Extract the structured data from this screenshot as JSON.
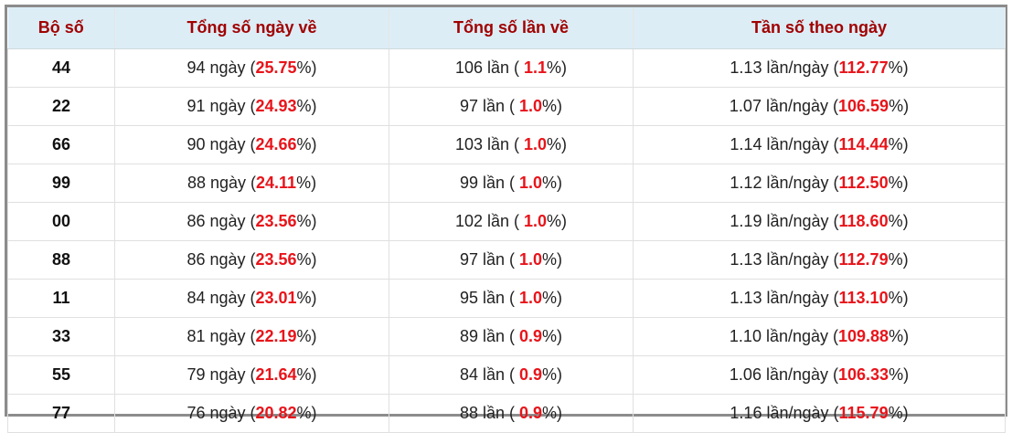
{
  "table": {
    "header": [
      "Bộ số",
      "Tổng số ngày về",
      "Tổng số lần về",
      "Tần số theo ngày"
    ],
    "rows": [
      {
        "bo_so": "44",
        "days": [
          "94 ngày (",
          "25.75",
          "%)"
        ],
        "times": [
          "106 lần ( ",
          "1.1",
          "%)"
        ],
        "freq": [
          "1.13 lần/ngày (",
          "112.77",
          "%)"
        ]
      },
      {
        "bo_so": "22",
        "days": [
          "91 ngày (",
          "24.93",
          "%)"
        ],
        "times": [
          "97 lần ( ",
          "1.0",
          "%)"
        ],
        "freq": [
          "1.07 lần/ngày (",
          "106.59",
          "%)"
        ]
      },
      {
        "bo_so": "66",
        "days": [
          "90 ngày (",
          "24.66",
          "%)"
        ],
        "times": [
          "103 lần ( ",
          "1.0",
          "%)"
        ],
        "freq": [
          "1.14 lần/ngày (",
          "114.44",
          "%)"
        ]
      },
      {
        "bo_so": "99",
        "days": [
          "88 ngày (",
          "24.11",
          "%)"
        ],
        "times": [
          "99 lần ( ",
          "1.0",
          "%)"
        ],
        "freq": [
          "1.12 lần/ngày (",
          "112.50",
          "%)"
        ]
      },
      {
        "bo_so": "00",
        "days": [
          "86 ngày (",
          "23.56",
          "%)"
        ],
        "times": [
          "102 lần ( ",
          "1.0",
          "%)"
        ],
        "freq": [
          "1.19 lần/ngày (",
          "118.60",
          "%)"
        ]
      },
      {
        "bo_so": "88",
        "days": [
          "86 ngày (",
          "23.56",
          "%)"
        ],
        "times": [
          "97 lần ( ",
          "1.0",
          "%)"
        ],
        "freq": [
          "1.13 lần/ngày (",
          "112.79",
          "%)"
        ]
      },
      {
        "bo_so": "11",
        "days": [
          "84 ngày (",
          "23.01",
          "%)"
        ],
        "times": [
          "95 lần ( ",
          "1.0",
          "%)"
        ],
        "freq": [
          "1.13 lần/ngày (",
          "113.10",
          "%)"
        ]
      },
      {
        "bo_so": "33",
        "days": [
          "81 ngày (",
          "22.19",
          "%)"
        ],
        "times": [
          "89 lần ( ",
          "0.9",
          "%)"
        ],
        "freq": [
          "1.10 lần/ngày (",
          "109.88",
          "%)"
        ]
      },
      {
        "bo_so": "55",
        "days": [
          "79 ngày (",
          "21.64",
          "%)"
        ],
        "times": [
          "84 lần ( ",
          "0.9",
          "%)"
        ],
        "freq": [
          "1.06 lần/ngày (",
          "106.33",
          "%)"
        ]
      },
      {
        "bo_so": "77",
        "days": [
          "76 ngày (",
          "20.82",
          "%)"
        ],
        "times": [
          "88 lần ( ",
          "0.9",
          "%)"
        ],
        "freq": [
          "1.16 lần/ngày (",
          "115.79",
          "%)"
        ]
      }
    ]
  }
}
